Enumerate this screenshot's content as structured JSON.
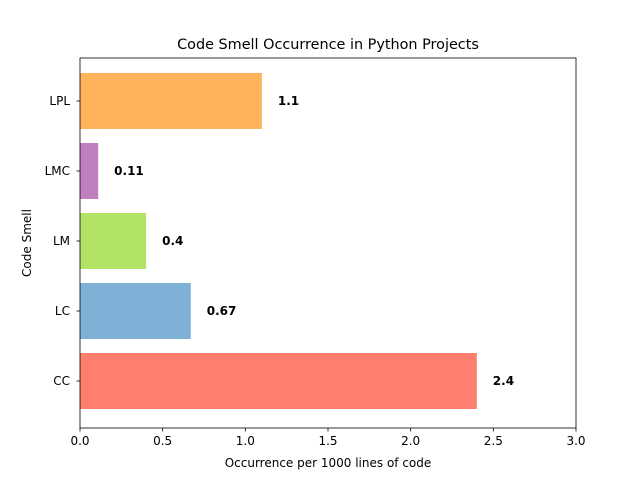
{
  "chart_data": {
    "type": "bar",
    "orientation": "horizontal",
    "title": "Code Smell Occurrence in Python Projects",
    "xlabel": "Occurrence per 1000 lines of code",
    "ylabel": "Code Smell",
    "categories": [
      "CC",
      "LC",
      "LM",
      "LMC",
      "LPL"
    ],
    "values": [
      2.4,
      0.67,
      0.4,
      0.11,
      1.1
    ],
    "value_labels": [
      "2.4",
      "0.67",
      "0.4",
      "0.11",
      "1.1"
    ],
    "colors": [
      "#ff7f6e",
      "#7fb0d6",
      "#b3e364",
      "#c080c0",
      "#ffb35a"
    ],
    "xlim": [
      0.0,
      3.0
    ],
    "xticks": [
      0.0,
      0.5,
      1.0,
      1.5,
      2.0,
      2.5,
      3.0
    ],
    "xtick_labels": [
      "0.0",
      "0.5",
      "1.0",
      "1.5",
      "2.0",
      "2.5",
      "3.0"
    ],
    "grid": false,
    "legend": "none"
  }
}
